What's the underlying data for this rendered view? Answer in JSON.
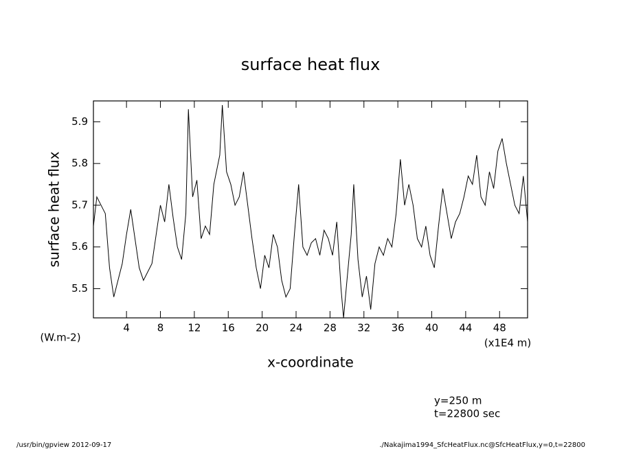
{
  "chart_data": {
    "type": "line",
    "title": "surface heat flux",
    "ylabel": "surface heat flux",
    "yunit": "(W.m-2)",
    "xlabel": "x-coordinate",
    "xunit": "(x1E4 m)",
    "annotations": [
      "y=250 m",
      "t=22800 sec"
    ],
    "footer_left": "/usr/bin/gpview  2012-09-17",
    "footer_right": "./Nakajima1994_SfcHeatFlux.nc@SfcHeatFlux,y=0,t=22800",
    "color": "#000000",
    "xlim": [
      0.1,
      51.3
    ],
    "ylim": [
      5.43,
      5.95
    ],
    "xticks": [
      4,
      8,
      12,
      16,
      20,
      24,
      28,
      32,
      36,
      40,
      44,
      48
    ],
    "yticks": [
      5.5,
      5.6,
      5.7,
      5.8,
      5.9
    ],
    "x": [
      0.1,
      0.5,
      1.0,
      1.5,
      2.0,
      2.5,
      3.0,
      3.5,
      4.0,
      4.5,
      5.0,
      5.5,
      6.0,
      6.5,
      7.0,
      7.5,
      8.0,
      8.5,
      9.0,
      9.5,
      10.0,
      10.5,
      11.0,
      11.3,
      11.8,
      12.3,
      12.8,
      13.3,
      13.8,
      14.3,
      15.0,
      15.3,
      15.8,
      16.3,
      16.8,
      17.3,
      17.8,
      18.3,
      18.8,
      19.3,
      19.8,
      20.3,
      20.8,
      21.3,
      21.8,
      22.3,
      22.8,
      23.3,
      23.8,
      24.3,
      24.8,
      25.3,
      25.8,
      26.3,
      26.8,
      27.3,
      27.8,
      28.3,
      28.8,
      29.3,
      29.6,
      30.0,
      30.5,
      30.8,
      31.3,
      31.8,
      32.3,
      32.8,
      33.3,
      33.8,
      34.3,
      34.8,
      35.3,
      35.8,
      36.3,
      36.8,
      37.3,
      37.8,
      38.3,
      38.8,
      39.3,
      39.8,
      40.3,
      40.8,
      41.3,
      41.8,
      42.3,
      42.8,
      43.3,
      43.8,
      44.3,
      44.8,
      45.3,
      45.8,
      46.3,
      46.8,
      47.3,
      47.8,
      48.3,
      48.8,
      49.3,
      49.8,
      50.3,
      50.8,
      51.3
    ],
    "values": [
      5.65,
      5.72,
      5.7,
      5.68,
      5.55,
      5.48,
      5.52,
      5.56,
      5.63,
      5.69,
      5.62,
      5.55,
      5.52,
      5.54,
      5.56,
      5.63,
      5.7,
      5.66,
      5.75,
      5.67,
      5.6,
      5.57,
      5.68,
      5.93,
      5.72,
      5.76,
      5.62,
      5.65,
      5.63,
      5.75,
      5.82,
      5.94,
      5.78,
      5.75,
      5.7,
      5.72,
      5.78,
      5.7,
      5.62,
      5.55,
      5.5,
      5.58,
      5.55,
      5.63,
      5.6,
      5.52,
      5.48,
      5.5,
      5.63,
      5.75,
      5.6,
      5.58,
      5.61,
      5.62,
      5.58,
      5.64,
      5.62,
      5.58,
      5.66,
      5.5,
      5.43,
      5.52,
      5.63,
      5.75,
      5.57,
      5.48,
      5.53,
      5.45,
      5.56,
      5.6,
      5.58,
      5.62,
      5.6,
      5.68,
      5.81,
      5.7,
      5.75,
      5.7,
      5.62,
      5.6,
      5.65,
      5.58,
      5.55,
      5.65,
      5.74,
      5.68,
      5.62,
      5.66,
      5.68,
      5.72,
      5.77,
      5.75,
      5.82,
      5.72,
      5.7,
      5.78,
      5.74,
      5.83,
      5.86,
      5.8,
      5.75,
      5.7,
      5.68,
      5.77,
      5.66
    ]
  }
}
